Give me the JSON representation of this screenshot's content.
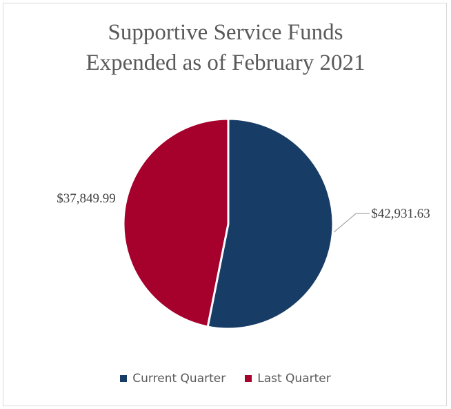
{
  "chart_data": {
    "type": "pie",
    "title": "Supportive Service Funds Expended as of February 2021",
    "title_lines": [
      "Supportive Service Funds",
      "Expended as of February 2021"
    ],
    "categories": [
      "Current Quarter",
      "Last Quarter"
    ],
    "values": [
      42931.63,
      37849.99
    ],
    "data_labels": [
      "$42,931.63",
      "$37,849.99"
    ],
    "colors": [
      "#173c66",
      "#a6002c"
    ],
    "legend_position": "bottom"
  },
  "legend": {
    "items": [
      {
        "label": "Current Quarter",
        "color": "#173c66"
      },
      {
        "label": "Last Quarter",
        "color": "#a6002c"
      }
    ]
  }
}
